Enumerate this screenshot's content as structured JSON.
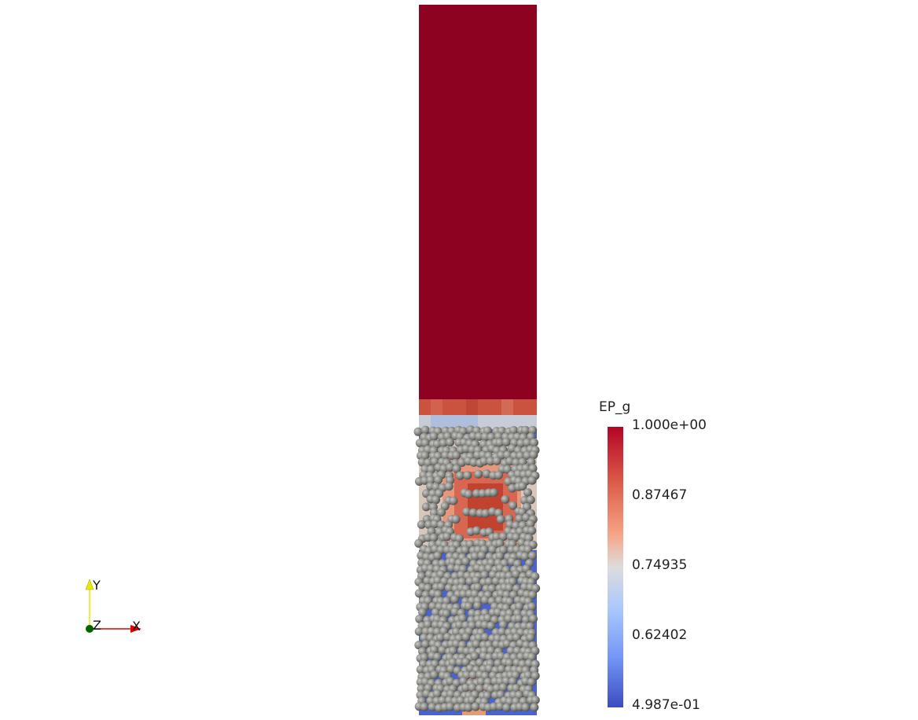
{
  "scalar_bar": {
    "title": "EP_g",
    "labels": [
      "1.000e+00",
      "0.87467",
      "0.74935",
      "0.62402",
      "4.987e-01"
    ],
    "colormap": [
      "#b40426",
      "#dc5d4a",
      "#f6a385",
      "#dddcdc",
      "#aac7fd",
      "#7597f6",
      "#3b4cc0"
    ]
  },
  "axes": {
    "y_label": "Y",
    "z_label": "Z",
    "x_label": "X",
    "colors": {
      "x": "#e00000",
      "y": "#e8e800",
      "z": "#006400"
    }
  },
  "domain": {
    "fluid_color": "#8c0220",
    "particle_color": "#8a8a86"
  }
}
